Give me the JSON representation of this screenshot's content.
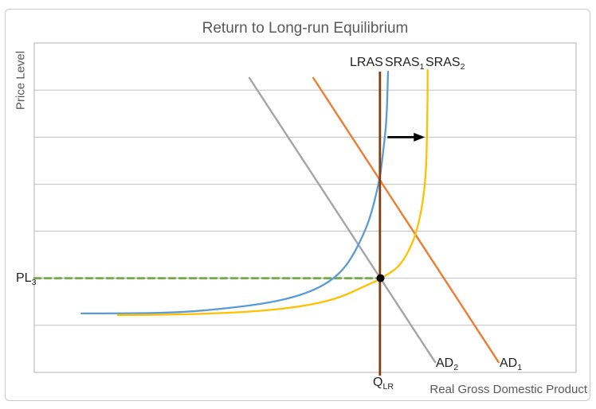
{
  "title": "Return to Long-run Equilibrium",
  "axes": {
    "y_label": "Price Level",
    "x_label": "Real Gross Domestic Product"
  },
  "curve_labels": {
    "lras": {
      "base": "LRAS",
      "sub": ""
    },
    "sras1": {
      "base": "SRAS",
      "sub": "1"
    },
    "sras2": {
      "base": "SRAS",
      "sub": "2"
    },
    "ad1": {
      "base": "AD",
      "sub": "1"
    },
    "ad2": {
      "base": "AD",
      "sub": "2"
    },
    "pl3": {
      "base": "PL",
      "sub": "3"
    },
    "qlr": {
      "base": "Q",
      "sub": "LR"
    }
  },
  "colors": {
    "blue": "#5B9BD5",
    "yellow": "#FFC000",
    "orange": "#ED7D31",
    "gray": "#A5A5A5",
    "brown": "#843C0C",
    "green": "#70AD47",
    "black": "#000000",
    "grid": "#C0C0C0",
    "frame": "#BFBFBF",
    "text_gray": "#595959"
  },
  "chart_data": {
    "type": "line",
    "title": "Return to Long-run Equilibrium",
    "xlabel": "Real Gross Domestic Product",
    "ylabel": "Price Level",
    "axis_numeric_labels": false,
    "note": "Axes carry no numeric ticks; coordinates below are percent of plot area (x: 0=left axis, 100=right edge; y: 0=x-axis, 100=plot top).",
    "x_range": [
      0,
      100
    ],
    "y_range": [
      0,
      100
    ],
    "grid": "horizontal",
    "gridlines_y": [
      14.3,
      28.6,
      42.9,
      57.1,
      71.4,
      85.7
    ],
    "series": [
      {
        "name": "PL3 guide (dashed)",
        "kind": "segment",
        "color_key": "green",
        "width": 2.8,
        "dash": [
          8,
          5
        ],
        "from": [
          0,
          28.6
        ],
        "to": [
          63.4,
          28.6
        ]
      },
      {
        "name": "AD2",
        "kind": "segment",
        "color_key": "gray",
        "width": 2.4,
        "from": [
          39.7,
          89.4
        ],
        "to": [
          74.0,
          3.1
        ]
      },
      {
        "name": "AD1",
        "kind": "segment",
        "color_key": "orange",
        "width": 2.4,
        "from": [
          51.5,
          89.4
        ],
        "to": [
          85.7,
          3.1
        ]
      },
      {
        "name": "SRAS1",
        "kind": "curve",
        "color_key": "blue",
        "width": 2.3,
        "points": [
          [
            8.7,
            17.9
          ],
          [
            17.2,
            17.9
          ],
          [
            27.5,
            18.2
          ],
          [
            36.3,
            19.6
          ],
          [
            42.9,
            21.0
          ],
          [
            48.1,
            22.9
          ],
          [
            52.2,
            25.4
          ],
          [
            55.1,
            28.3
          ],
          [
            57.2,
            31.6
          ],
          [
            58.8,
            35.5
          ],
          [
            60.1,
            39.6
          ],
          [
            61.3,
            44.0
          ],
          [
            62.2,
            48.3
          ],
          [
            62.9,
            52.7
          ],
          [
            63.5,
            57.0
          ],
          [
            64.0,
            61.4
          ],
          [
            64.3,
            65.7
          ],
          [
            64.6,
            70.0
          ],
          [
            64.9,
            74.4
          ],
          [
            65.1,
            80.4
          ],
          [
            65.2,
            86.0
          ],
          [
            65.3,
            91.3
          ]
        ]
      },
      {
        "name": "SRAS2",
        "kind": "curve",
        "color_key": "yellow",
        "width": 2.3,
        "points": [
          [
            15.4,
            17.4
          ],
          [
            24.6,
            17.5
          ],
          [
            33.4,
            17.9
          ],
          [
            40.7,
            18.5
          ],
          [
            47.4,
            19.6
          ],
          [
            52.5,
            21.0
          ],
          [
            56.6,
            22.9
          ],
          [
            59.6,
            25.1
          ],
          [
            61.8,
            26.8
          ],
          [
            63.1,
            27.7
          ],
          [
            64.0,
            28.6
          ],
          [
            65.7,
            30.2
          ],
          [
            67.2,
            32.1
          ],
          [
            68.4,
            34.8
          ],
          [
            69.4,
            37.9
          ],
          [
            70.3,
            41.5
          ],
          [
            71.0,
            45.7
          ],
          [
            71.6,
            50.7
          ],
          [
            72.1,
            57.0
          ],
          [
            72.4,
            64.7
          ],
          [
            72.5,
            74.4
          ],
          [
            72.6,
            84.1
          ],
          [
            72.6,
            91.8
          ]
        ]
      },
      {
        "name": "LRAS",
        "kind": "vline",
        "color_key": "brown",
        "width": 2.8,
        "x": 63.8,
        "y_from": -1.0,
        "y_to": 91.3
      }
    ],
    "annotations": {
      "equilibrium_point": {
        "x": 63.9,
        "y": 28.6,
        "radius_px": 5,
        "color_key": "black"
      },
      "shift_arrow": {
        "y": 71.4,
        "x_from": 65.2,
        "x_to": 72.1,
        "color_key": "black",
        "width": 2.8,
        "meaning": "SRAS shifts right from SRAS1 to SRAS2"
      }
    },
    "legend": "none"
  }
}
